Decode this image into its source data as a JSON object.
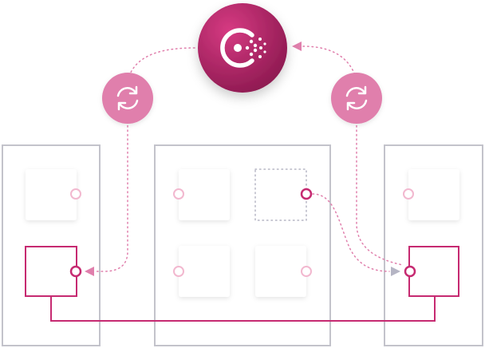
{
  "colors": {
    "brand": "#c62a71",
    "brand_dark": "#8e1a51",
    "sync_badge": "#e07fac",
    "node_border": "#c3c3cb",
    "port_light": "#f2b8cf",
    "dotted_link": "#e07fac",
    "dotted_link_alt": "#b5b5c4",
    "service_shadow": "#e6e6ea"
  },
  "icons": {
    "hub": "consul-logo-icon",
    "sync": "sync-arrows-icon"
  }
}
